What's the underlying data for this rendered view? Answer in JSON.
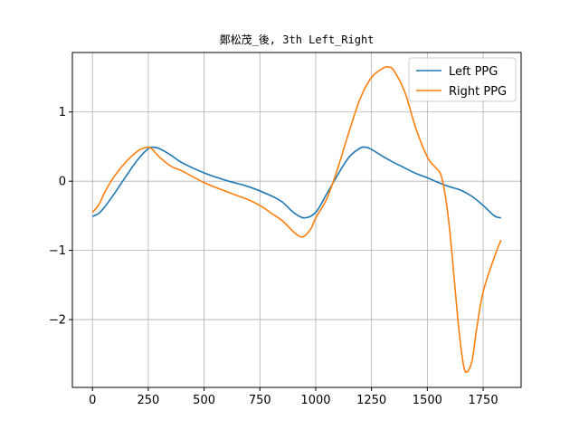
{
  "chart_data": {
    "type": "line",
    "title": "鄭松茂_後, 3th Left_Right",
    "xlabel": "",
    "ylabel": "",
    "xlim": [
      -90,
      1920
    ],
    "ylim": [
      -2.98,
      1.86
    ],
    "xticks": [
      0,
      250,
      500,
      750,
      1000,
      1250,
      1500,
      1750
    ],
    "yticks": [
      -2,
      -1,
      0,
      1
    ],
    "ytick_labels": [
      "−2",
      "−1",
      "0",
      "1"
    ],
    "grid": true,
    "legend_position": "top-right",
    "series": [
      {
        "name": "Left PPG",
        "color": "#1f77b4",
        "x": [
          0,
          30,
          60,
          100,
          150,
          200,
          250,
          275,
          300,
          350,
          400,
          500,
          600,
          700,
          800,
          850,
          900,
          950,
          1000,
          1050,
          1100,
          1150,
          1200,
          1225,
          1250,
          1300,
          1350,
          1400,
          1450,
          1500,
          1550,
          1600,
          1650,
          1700,
          1750,
          1800,
          1830
        ],
        "y": [
          -0.51,
          -0.46,
          -0.35,
          -0.17,
          0.07,
          0.3,
          0.47,
          0.49,
          0.47,
          0.38,
          0.27,
          0.12,
          0.01,
          -0.08,
          -0.21,
          -0.3,
          -0.45,
          -0.53,
          -0.45,
          -0.18,
          0.1,
          0.35,
          0.48,
          0.49,
          0.46,
          0.36,
          0.27,
          0.19,
          0.11,
          0.05,
          -0.02,
          -0.08,
          -0.13,
          -0.22,
          -0.35,
          -0.5,
          -0.53
        ]
      },
      {
        "name": "Right PPG",
        "color": "#ff7f0e",
        "x": [
          0,
          30,
          60,
          100,
          150,
          200,
          230,
          250,
          265,
          300,
          350,
          400,
          500,
          600,
          700,
          760,
          800,
          850,
          900,
          930,
          950,
          980,
          1000,
          1050,
          1100,
          1150,
          1200,
          1250,
          1300,
          1325,
          1350,
          1400,
          1450,
          1500,
          1530,
          1560,
          1580,
          1600,
          1620,
          1640,
          1660,
          1675,
          1700,
          1720,
          1750,
          1800,
          1830
        ],
        "y": [
          -0.45,
          -0.33,
          -0.13,
          0.08,
          0.28,
          0.43,
          0.48,
          0.49,
          0.47,
          0.35,
          0.22,
          0.15,
          -0.02,
          -0.15,
          -0.27,
          -0.37,
          -0.46,
          -0.57,
          -0.73,
          -0.8,
          -0.79,
          -0.68,
          -0.53,
          -0.25,
          0.2,
          0.72,
          1.2,
          1.5,
          1.63,
          1.65,
          1.6,
          1.28,
          0.75,
          0.35,
          0.22,
          0.1,
          -0.2,
          -0.7,
          -1.4,
          -2.1,
          -2.62,
          -2.76,
          -2.6,
          -2.15,
          -1.6,
          -1.1,
          -0.85
        ]
      }
    ]
  }
}
